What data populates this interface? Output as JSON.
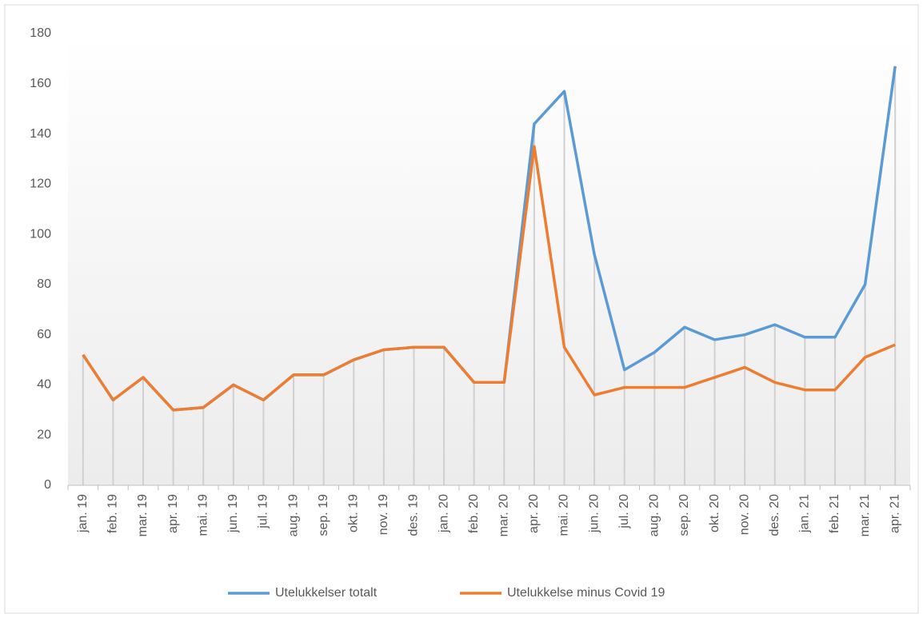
{
  "chart_data": {
    "type": "line",
    "categories": [
      "jan. 19",
      "feb. 19",
      "mar. 19",
      "apr. 19",
      "mai. 19",
      "jun. 19",
      "jul. 19",
      "aug. 19",
      "sep. 19",
      "okt. 19",
      "nov. 19",
      "des. 19",
      "jan. 20",
      "feb. 20",
      "mar. 20",
      "apr. 20",
      "mai. 20",
      "jun. 20",
      "jul. 20",
      "aug. 20",
      "sep. 20",
      "okt. 20",
      "nov. 20",
      "des. 20",
      "jan. 21",
      "feb. 21",
      "mar. 21",
      "apr. 21"
    ],
    "series": [
      {
        "name": "Utelukkelser totalt",
        "color": "#5b9bd5",
        "values": [
          52,
          34,
          43,
          30,
          31,
          40,
          34,
          44,
          44,
          50,
          54,
          55,
          55,
          41,
          41,
          144,
          157,
          92,
          46,
          53,
          63,
          58,
          60,
          64,
          59,
          59,
          80,
          167
        ]
      },
      {
        "name": "Utelukkelse minus Covid 19",
        "color": "#ed7d31",
        "values": [
          52,
          34,
          43,
          30,
          31,
          40,
          34,
          44,
          44,
          50,
          54,
          55,
          55,
          41,
          41,
          135,
          55,
          36,
          39,
          39,
          39,
          43,
          47,
          41,
          38,
          38,
          51,
          56
        ]
      }
    ],
    "ylim": [
      0,
      180
    ],
    "yticks": [
      0,
      20,
      40,
      60,
      80,
      100,
      120,
      140,
      160,
      180
    ],
    "drop_lines": true,
    "legend": "bottom"
  }
}
